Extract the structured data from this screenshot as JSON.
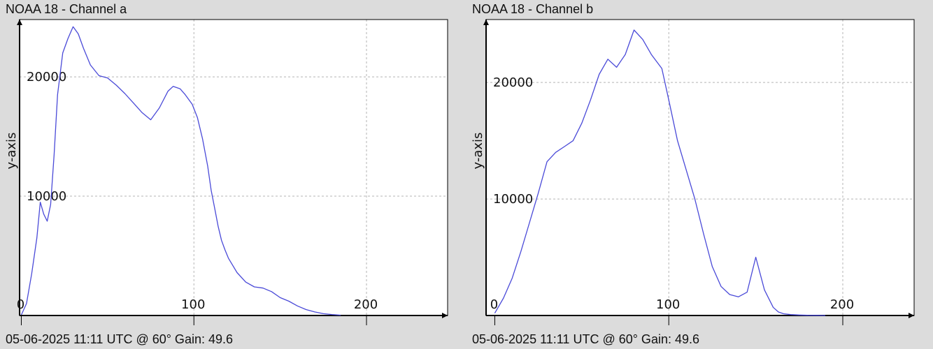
{
  "chart_data": [
    {
      "type": "line",
      "title": "NOAA 18 - Channel a",
      "xlabel": "",
      "ylabel": "y-axis",
      "xlim": [
        -1,
        247
      ],
      "ylim": [
        0,
        24800
      ],
      "x_ticks": [
        0,
        100,
        200
      ],
      "y_ticks": [
        10000,
        20000
      ],
      "grid": true,
      "line_color": "#4a4ad8",
      "footer": "05-06-2025 11:11 UTC @ 60° Gain: 49.6",
      "series": [
        {
          "x": [
            0,
            3,
            6,
            9,
            11,
            13,
            15,
            17,
            19,
            21,
            24,
            27,
            30,
            33,
            36,
            40,
            45,
            50,
            55,
            60,
            65,
            70,
            75,
            80,
            85,
            88,
            92,
            95,
            99,
            102,
            105,
            108,
            110,
            112,
            114,
            116,
            118,
            120,
            125,
            130,
            135,
            140,
            145,
            150,
            155,
            160,
            165,
            170,
            175,
            180,
            185
          ],
          "values": [
            50,
            1000,
            3500,
            6500,
            9500,
            8500,
            7900,
            9300,
            13500,
            18500,
            22000,
            23200,
            24200,
            23600,
            22400,
            21000,
            20100,
            19900,
            19300,
            18600,
            17800,
            17000,
            16400,
            17400,
            18800,
            19200,
            19000,
            18500,
            17700,
            16600,
            14800,
            12500,
            10500,
            9000,
            7500,
            6300,
            5500,
            4800,
            3600,
            2800,
            2400,
            2300,
            2000,
            1500,
            1200,
            800,
            500,
            300,
            150,
            80,
            30
          ]
        }
      ]
    },
    {
      "type": "line",
      "title": "NOAA 18 - Channel b",
      "xlabel": "",
      "ylabel": "y-axis",
      "xlim": [
        -5,
        241
      ],
      "ylim": [
        0,
        25400
      ],
      "x_ticks": [
        0,
        100,
        200
      ],
      "y_ticks": [
        10000,
        20000
      ],
      "grid": true,
      "line_color": "#4a4ad8",
      "footer": "05-06-2025 11:11 UTC @ 60° Gain: 49.6",
      "series": [
        {
          "x": [
            0,
            5,
            10,
            15,
            20,
            25,
            30,
            35,
            40,
            45,
            50,
            55,
            60,
            65,
            70,
            75,
            80,
            85,
            90,
            93,
            96,
            100,
            105,
            110,
            115,
            120,
            125,
            130,
            135,
            140,
            145,
            150,
            155,
            160,
            163,
            166,
            170,
            175,
            180,
            185,
            190
          ],
          "values": [
            200,
            1500,
            3200,
            5500,
            8000,
            10500,
            13200,
            14000,
            14500,
            15000,
            16500,
            18500,
            20700,
            22000,
            21300,
            22400,
            24500,
            23700,
            22400,
            21800,
            21200,
            18500,
            15000,
            12500,
            10000,
            7000,
            4200,
            2500,
            1800,
            1600,
            2000,
            5000,
            2200,
            700,
            300,
            150,
            80,
            40,
            20,
            10,
            0
          ]
        }
      ]
    }
  ]
}
